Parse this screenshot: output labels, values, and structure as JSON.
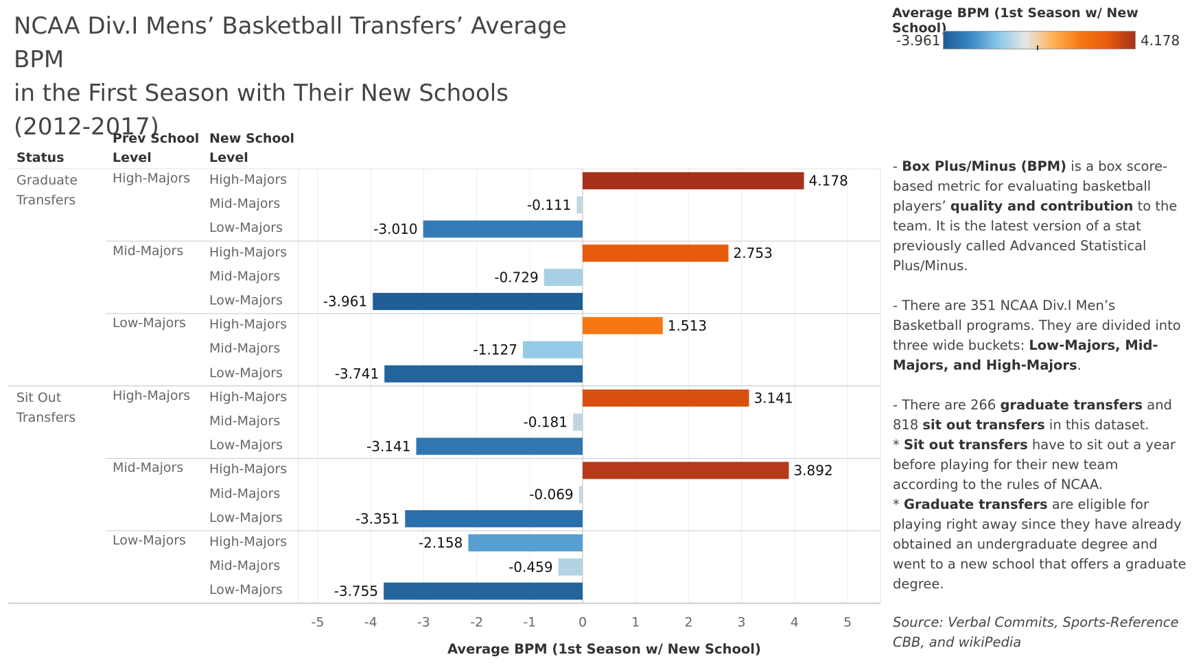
{
  "title_line1": "NCAA Div.I Mens’ Basketball Transfers’ Average BPM",
  "title_line2": "in the First Season with Their New Schools",
  "title_line3": "(2012-2017)",
  "headers": {
    "status": "Status",
    "prev_line1": "Prev School",
    "prev_line2": "Level",
    "new_line1": "New School",
    "new_line2": "Level"
  },
  "legend": {
    "title": "Average BPM (1st Season w/ New School)",
    "min_label": "-3.961",
    "max_label": "4.178",
    "colors": [
      "#1f5d96",
      "#3a87c3",
      "#8cc9ea",
      "#e6e6e6",
      "#ffb257",
      "#f57a14",
      "#e85a0c",
      "#a6321c"
    ]
  },
  "notes": [
    [
      [
        "- ",
        false
      ],
      [
        "Box Plus/Minus (BPM)",
        true
      ],
      [
        " is a box score-based metric for evaluating basketball players’ ",
        false
      ],
      [
        "quality and contribution",
        true
      ],
      [
        " to the team. It is the latest version of a stat previously called Advanced Statistical Plus/Minus.",
        false
      ]
    ],
    [
      [
        "- There are 351 NCAA Div.I Men’s Basketball programs. They are divided into three wide buckets: ",
        false
      ],
      [
        "Low-Majors, Mid-Majors, and High-Majors",
        true
      ],
      [
        ".",
        false
      ]
    ],
    [
      [
        "- There are 266 ",
        false
      ],
      [
        "graduate transfers",
        true
      ],
      [
        " and 818 ",
        false
      ],
      [
        "sit out transfers",
        true
      ],
      [
        " in this dataset.",
        false
      ]
    ],
    [
      [
        "* ",
        false
      ],
      [
        "Sit out transfers",
        true
      ],
      [
        " have to sit out a year before playing for their new team according to the rules of NCAA.",
        false
      ]
    ],
    [
      [
        "* ",
        false
      ],
      [
        "Graduate transfers",
        true
      ],
      [
        " are eligible for playing right away since they have already obtained an undergraduate degree and went to a new school that offers a graduate degree.",
        false
      ]
    ]
  ],
  "source": "Source: Verbal Commits, Sports-Reference CBB, and wikiPedia",
  "chart_data": {
    "type": "bar",
    "orientation": "horizontal",
    "xlabel": "Average BPM (1st Season w/ New School)",
    "xlim": [
      -5.5,
      5.5
    ],
    "xticks": [
      -5,
      -4,
      -3,
      -2,
      -1,
      0,
      1,
      2,
      3,
      4,
      5
    ],
    "grid": true,
    "rows": [
      {
        "status": "Graduate Transfers",
        "prev": "High-Majors",
        "new": "High-Majors",
        "value": 4.178,
        "label": "4.178"
      },
      {
        "status": "Graduate Transfers",
        "prev": "High-Majors",
        "new": "Mid-Majors",
        "value": -0.111,
        "label": "-0.111"
      },
      {
        "status": "Graduate Transfers",
        "prev": "High-Majors",
        "new": "Low-Majors",
        "value": -3.01,
        "label": "-3.010"
      },
      {
        "status": "Graduate Transfers",
        "prev": "Mid-Majors",
        "new": "High-Majors",
        "value": 2.753,
        "label": "2.753"
      },
      {
        "status": "Graduate Transfers",
        "prev": "Mid-Majors",
        "new": "Mid-Majors",
        "value": -0.729,
        "label": "-0.729"
      },
      {
        "status": "Graduate Transfers",
        "prev": "Mid-Majors",
        "new": "Low-Majors",
        "value": -3.961,
        "label": "-3.961"
      },
      {
        "status": "Graduate Transfers",
        "prev": "Low-Majors",
        "new": "High-Majors",
        "value": 1.513,
        "label": "1.513"
      },
      {
        "status": "Graduate Transfers",
        "prev": "Low-Majors",
        "new": "Mid-Majors",
        "value": -1.127,
        "label": "-1.127"
      },
      {
        "status": "Graduate Transfers",
        "prev": "Low-Majors",
        "new": "Low-Majors",
        "value": -3.741,
        "label": "-3.741"
      },
      {
        "status": "Sit Out Transfers",
        "prev": "High-Majors",
        "new": "High-Majors",
        "value": 3.141,
        "label": "3.141"
      },
      {
        "status": "Sit Out Transfers",
        "prev": "High-Majors",
        "new": "Mid-Majors",
        "value": -0.181,
        "label": "-0.181"
      },
      {
        "status": "Sit Out Transfers",
        "prev": "High-Majors",
        "new": "Low-Majors",
        "value": -3.141,
        "label": "-3.141"
      },
      {
        "status": "Sit Out Transfers",
        "prev": "Mid-Majors",
        "new": "High-Majors",
        "value": 3.892,
        "label": "3.892"
      },
      {
        "status": "Sit Out Transfers",
        "prev": "Mid-Majors",
        "new": "Mid-Majors",
        "value": -0.069,
        "label": "-0.069"
      },
      {
        "status": "Sit Out Transfers",
        "prev": "Mid-Majors",
        "new": "Low-Majors",
        "value": -3.351,
        "label": "-3.351"
      },
      {
        "status": "Sit Out Transfers",
        "prev": "Low-Majors",
        "new": "High-Majors",
        "value": -2.158,
        "label": "-2.158"
      },
      {
        "status": "Sit Out Transfers",
        "prev": "Low-Majors",
        "new": "Mid-Majors",
        "value": -0.459,
        "label": "-0.459"
      },
      {
        "status": "Sit Out Transfers",
        "prev": "Low-Majors",
        "new": "Low-Majors",
        "value": -3.755,
        "label": "-3.755"
      }
    ],
    "color_scale": {
      "min": -3.961,
      "max": 4.178
    }
  }
}
